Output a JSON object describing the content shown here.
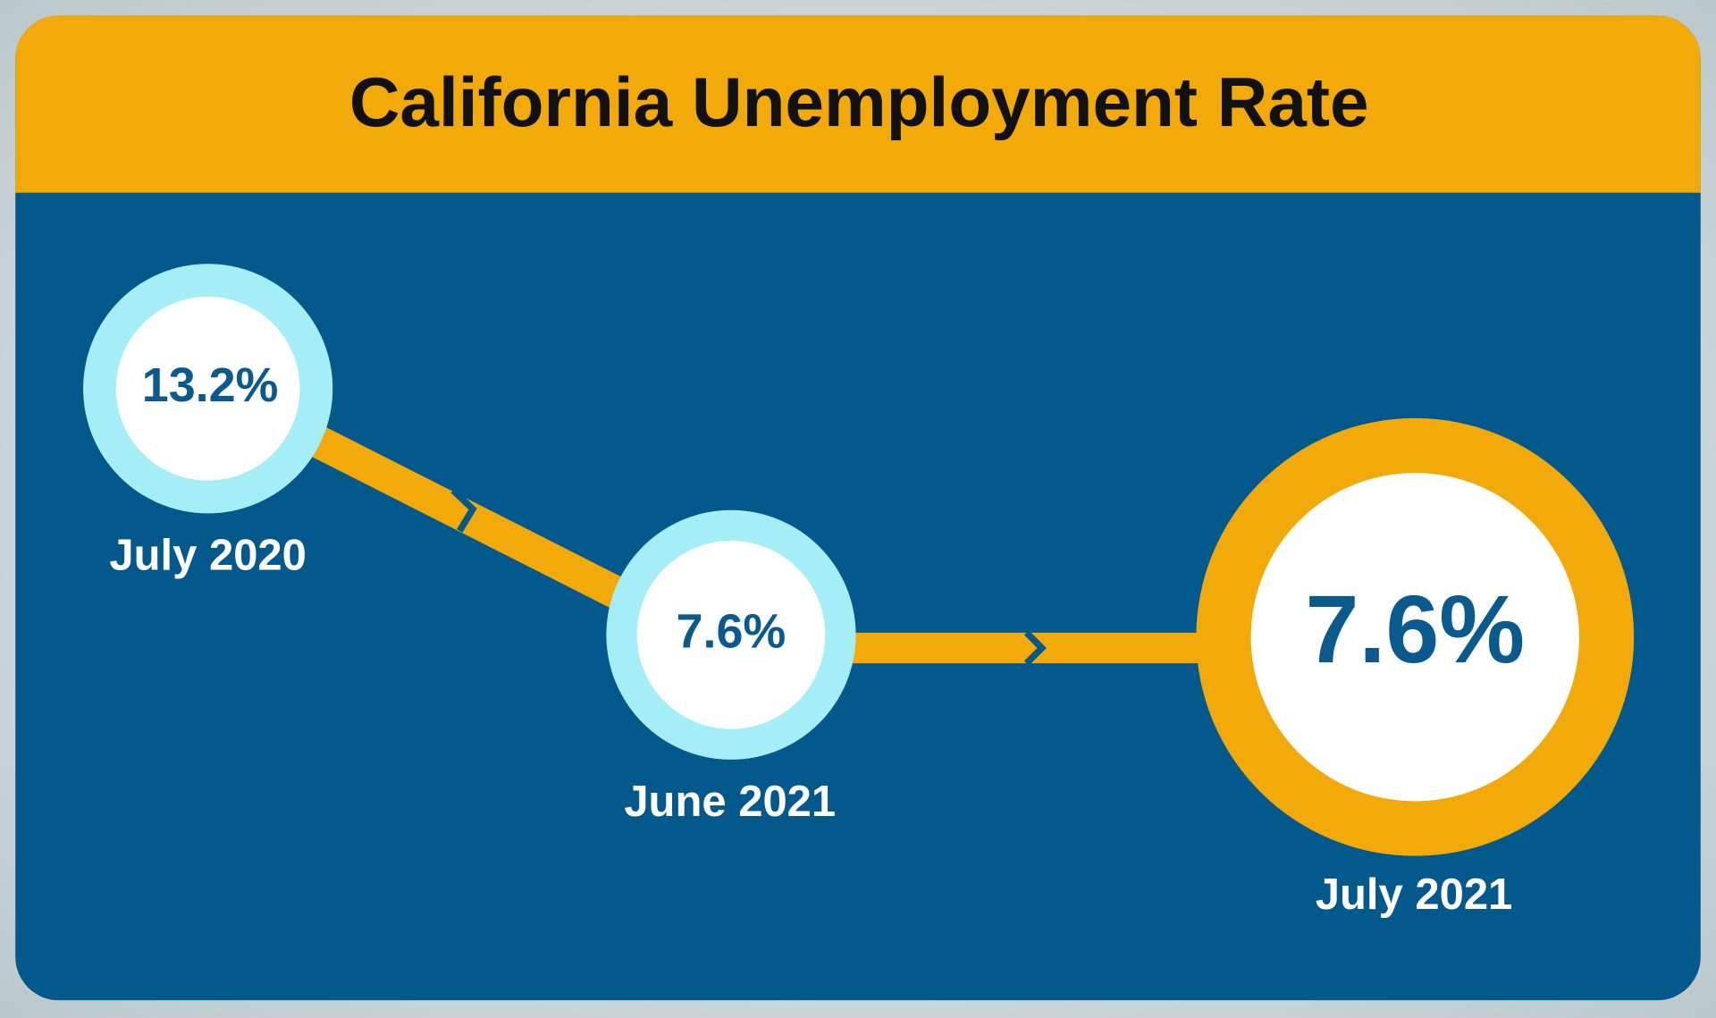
{
  "title": "California Unemployment Rate",
  "nodes": [
    {
      "value": "13.2%",
      "label": "July 2020"
    },
    {
      "value": "7.6%",
      "label": "June 2021"
    },
    {
      "value": "7.6%",
      "label": "July 2021"
    }
  ]
}
